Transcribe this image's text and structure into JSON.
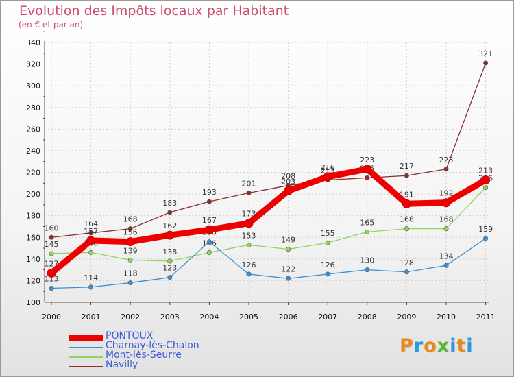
{
  "header": {
    "title": "Evolution des Impôts locaux par Habitant",
    "subtitle": "(en € et par an)"
  },
  "logo": {
    "text": "Proxiti",
    "colors": [
      "#e8891a",
      "#2a9ad8",
      "#e8891a",
      "#59b534",
      "#2a9ad8",
      "#e8891a",
      "#2a9ad8"
    ]
  },
  "chart_data": {
    "type": "line",
    "title": "Evolution des Impôts locaux par Habitant",
    "subtitle": "(en € et par an)",
    "xlabel": "",
    "ylabel": "",
    "x": [
      "2000",
      "2001",
      "2002",
      "2003",
      "2004",
      "2005",
      "2006",
      "2007",
      "2008",
      "2009",
      "2010",
      "2011"
    ],
    "ylim": [
      100,
      340
    ],
    "yticks": [
      100,
      120,
      140,
      160,
      180,
      200,
      220,
      240,
      260,
      280,
      300,
      320,
      340
    ],
    "grid": true,
    "legend_position": "bottom-left",
    "series": [
      {
        "name": "Navilly",
        "color": "#8b2e2e",
        "values": [
          160,
          164,
          168,
          183,
          193,
          201,
          208,
          213,
          215,
          217,
          223,
          321
        ]
      },
      {
        "name": "Mont-lès-Seurre",
        "color": "#8fd65a",
        "values": [
          145,
          146,
          139,
          138,
          146,
          153,
          149,
          155,
          165,
          168,
          168,
          206
        ]
      },
      {
        "name": "Charnay-lès-Chalon",
        "color": "#3c8fd4",
        "values": [
          113,
          114,
          118,
          123,
          156,
          126,
          122,
          126,
          130,
          128,
          134,
          159
        ]
      },
      {
        "name": "PONTOUX",
        "color": "#ee0000",
        "values": [
          127,
          157,
          156,
          162,
          167,
          173,
          203,
          216,
          223,
          191,
          192,
          213
        ]
      }
    ]
  },
  "legend": [
    {
      "label": "PONTOUX",
      "color": "#ee0000"
    },
    {
      "label": "Charnay-lès-Chalon",
      "color": "#3c8fd4"
    },
    {
      "label": "Mont-lès-Seurre",
      "color": "#8fd65a"
    },
    {
      "label": "Navilly",
      "color": "#8b2e2e"
    }
  ]
}
